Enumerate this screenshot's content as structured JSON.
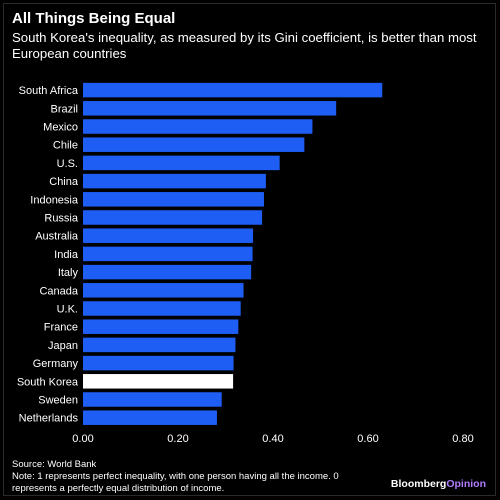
{
  "header": {
    "title": "All Things Being Equal",
    "subtitle": "South Korea's inequality, as measured by its Gini coefficient, is better than most European countries"
  },
  "footer": {
    "source": "Source: World Bank",
    "note_line1": "Note: 1 represents perfect inequality, with one person having all the income. 0",
    "note_line2": "represents a perfectly equal distribution of income."
  },
  "brand": {
    "part1": "Bloomberg",
    "part2": "Opinion"
  },
  "colors": {
    "bar": "#1f5ef5",
    "highlight": "#ffffff",
    "background": "#000000",
    "brand_accent": "#b07cff"
  },
  "chart_data": {
    "type": "bar",
    "orientation": "horizontal",
    "categories": [
      "South Africa",
      "Brazil",
      "Mexico",
      "Chile",
      "U.S.",
      "China",
      "Indonesia",
      "Russia",
      "Australia",
      "India",
      "Italy",
      "Canada",
      "U.K.",
      "France",
      "Japan",
      "Germany",
      "South Korea",
      "Sweden",
      "Netherlands"
    ],
    "values": [
      0.63,
      0.533,
      0.483,
      0.466,
      0.414,
      0.385,
      0.381,
      0.377,
      0.358,
      0.357,
      0.354,
      0.338,
      0.332,
      0.327,
      0.321,
      0.317,
      0.316,
      0.292,
      0.282
    ],
    "highlight": "South Korea",
    "xlim": [
      0,
      0.8
    ],
    "xticks": [
      "0.00",
      "0.20",
      "0.40",
      "0.60",
      "0.80"
    ],
    "grid": false,
    "legend": "none"
  }
}
